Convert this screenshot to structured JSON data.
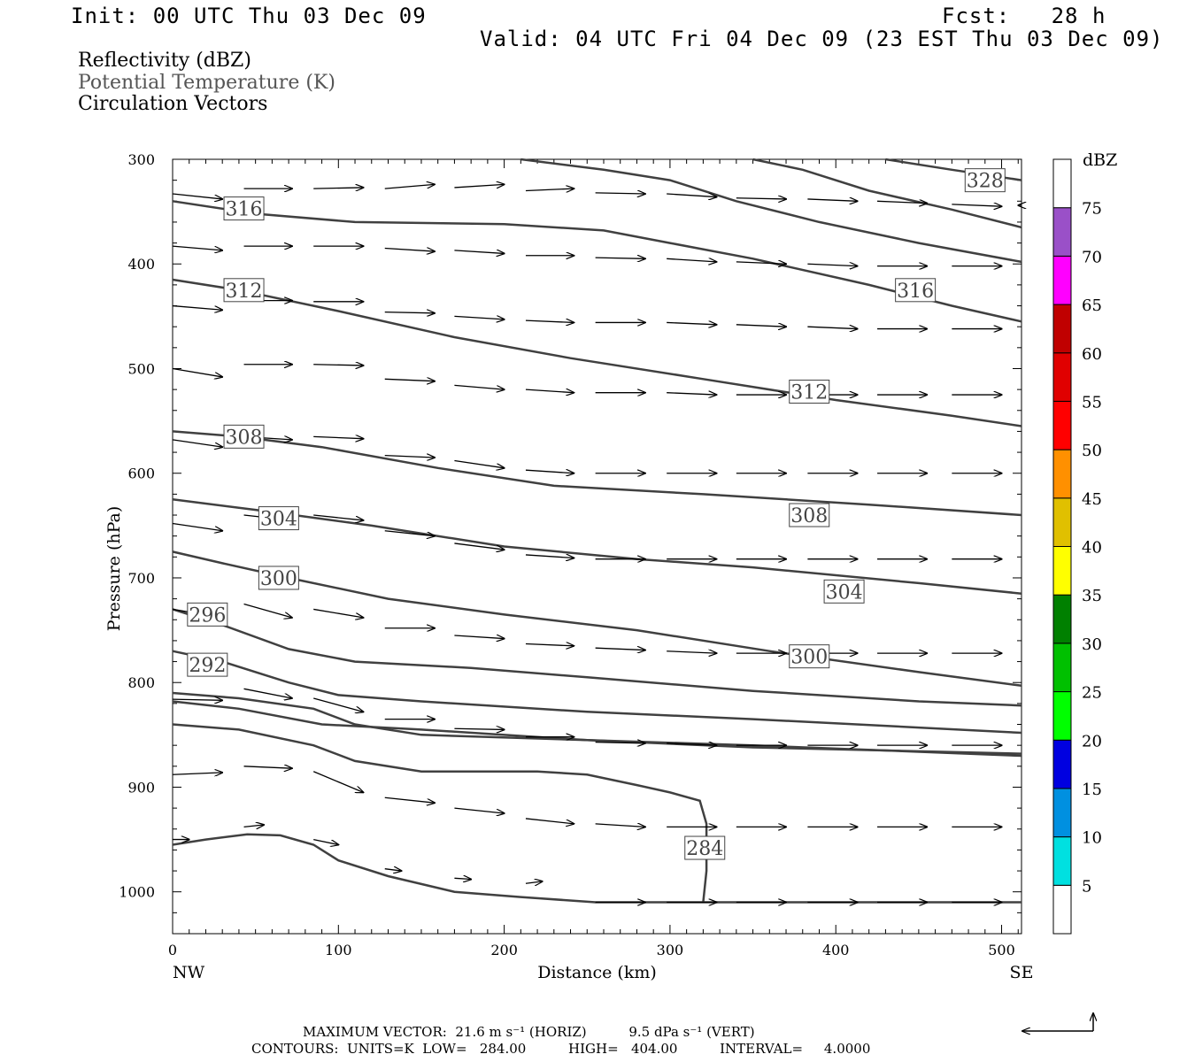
{
  "header": {
    "init": "Init: 00 UTC Thu 03 Dec 09",
    "fcst": "Fcst:   28 h",
    "valid": "Valid: 04 UTC Fri 04 Dec 09 (23 EST Thu 03 Dec 09)"
  },
  "fields": [
    "Reflectivity (dBZ)",
    "Potential Temperature (K)",
    "Circulation Vectors"
  ],
  "footer": {
    "max_vector": "MAXIMUM VECTOR:  21.6 m s⁻¹ (HORIZ)          9.5 dPa s⁻¹ (VERT)",
    "contours": "CONTOURS:  UNITS=K  LOW=   284.00          HIGH=   404.00          INTERVAL=     4.0000"
  },
  "colors": {
    "contour": "#404040",
    "scale": [
      "#00e0e0",
      "#0090e0",
      "#0000e0",
      "#00ff00",
      "#00c000",
      "#008000",
      "#ffff00",
      "#e0c000",
      "#ff9000",
      "#ff0000",
      "#e00000",
      "#c00000",
      "#ff00ff",
      "#9a50c8",
      "#ffffff"
    ]
  },
  "chart_data": {
    "type": "contour",
    "xlabel": "Distance (km)",
    "ylabel": "Pressure (hPa)",
    "xlim": [
      0,
      512
    ],
    "ylim": [
      1040,
      300
    ],
    "xticks": [
      0,
      100,
      200,
      300,
      400,
      500
    ],
    "yticks": [
      300,
      400,
      500,
      600,
      700,
      800,
      900,
      1000
    ],
    "x_end_labels": [
      "NW",
      "SE"
    ],
    "colorbar": {
      "title": "dBZ",
      "labels": [
        "5",
        "10",
        "15",
        "20",
        "25",
        "30",
        "35",
        "40",
        "45",
        "50",
        "55",
        "60",
        "65",
        "70",
        "75"
      ],
      "levels": [
        5,
        10,
        15,
        20,
        25,
        30,
        35,
        40,
        45,
        50,
        55,
        60,
        65,
        70,
        75
      ]
    },
    "contours": [
      {
        "level": 284,
        "label": "284",
        "points": [
          [
            0,
            955
          ],
          [
            20,
            950
          ],
          [
            45,
            945
          ],
          [
            65,
            946
          ],
          [
            85,
            955
          ],
          [
            100,
            970
          ],
          [
            130,
            985
          ],
          [
            170,
            1000
          ],
          [
            210,
            1005
          ],
          [
            255,
            1010
          ],
          [
            300,
            1010
          ],
          [
            512,
            1010
          ]
        ],
        "labels_at": [
          [
            321,
            958
          ]
        ]
      },
      {
        "level": 284,
        "label": "",
        "points": [
          [
            0,
            840
          ],
          [
            40,
            845
          ],
          [
            85,
            860
          ],
          [
            110,
            875
          ],
          [
            150,
            885
          ],
          [
            220,
            885
          ],
          [
            250,
            888
          ],
          [
            280,
            898
          ],
          [
            300,
            905
          ],
          [
            318,
            913
          ],
          [
            322,
            935
          ],
          [
            322,
            980
          ],
          [
            320,
            1010
          ]
        ]
      },
      {
        "level": 288,
        "label": "",
        "points": [
          [
            0,
            810
          ],
          [
            40,
            815
          ],
          [
            85,
            825
          ],
          [
            110,
            840
          ],
          [
            150,
            850
          ],
          [
            250,
            855
          ],
          [
            350,
            862
          ],
          [
            512,
            868
          ]
        ]
      },
      {
        "level": 290,
        "label": "",
        "points": [
          [
            0,
            818
          ],
          [
            40,
            825
          ],
          [
            90,
            840
          ],
          [
            150,
            845
          ],
          [
            250,
            855
          ],
          [
            350,
            860
          ],
          [
            512,
            870
          ]
        ]
      },
      {
        "level": 292,
        "label": "292",
        "points": [
          [
            0,
            770
          ],
          [
            30,
            780
          ],
          [
            70,
            800
          ],
          [
            100,
            812
          ],
          [
            150,
            818
          ],
          [
            250,
            828
          ],
          [
            350,
            835
          ],
          [
            450,
            843
          ],
          [
            512,
            848
          ]
        ],
        "labels_at": [
          [
            21,
            783
          ]
        ]
      },
      {
        "level": 296,
        "label": "296",
        "points": [
          [
            0,
            730
          ],
          [
            30,
            745
          ],
          [
            70,
            768
          ],
          [
            110,
            780
          ],
          [
            180,
            786
          ],
          [
            250,
            795
          ],
          [
            350,
            808
          ],
          [
            450,
            818
          ],
          [
            512,
            822
          ]
        ],
        "labels_at": [
          [
            21,
            735
          ]
        ]
      },
      {
        "level": 300,
        "label": "300",
        "points": [
          [
            0,
            675
          ],
          [
            30,
            686
          ],
          [
            70,
            700
          ],
          [
            130,
            720
          ],
          [
            200,
            735
          ],
          [
            280,
            750
          ],
          [
            360,
            770
          ],
          [
            450,
            790
          ],
          [
            512,
            803
          ]
        ],
        "labels_at": [
          [
            64,
            700
          ],
          [
            384,
            775
          ]
        ]
      },
      {
        "level": 304,
        "label": "304",
        "points": [
          [
            0,
            625
          ],
          [
            50,
            635
          ],
          [
            120,
            650
          ],
          [
            200,
            670
          ],
          [
            280,
            682
          ],
          [
            350,
            690
          ],
          [
            450,
            705
          ],
          [
            512,
            715
          ]
        ],
        "labels_at": [
          [
            64,
            643
          ],
          [
            405,
            713
          ]
        ]
      },
      {
        "level": 308,
        "label": "308",
        "points": [
          [
            0,
            560
          ],
          [
            40,
            565
          ],
          [
            90,
            575
          ],
          [
            160,
            595
          ],
          [
            230,
            612
          ],
          [
            320,
            620
          ],
          [
            420,
            630
          ],
          [
            512,
            640
          ]
        ],
        "labels_at": [
          [
            43,
            565
          ],
          [
            384,
            640
          ]
        ]
      },
      {
        "level": 312,
        "label": "312",
        "points": [
          [
            0,
            415
          ],
          [
            40,
            425
          ],
          [
            100,
            445
          ],
          [
            170,
            470
          ],
          [
            240,
            490
          ],
          [
            320,
            510
          ],
          [
            400,
            530
          ],
          [
            470,
            545
          ],
          [
            512,
            555
          ]
        ],
        "labels_at": [
          [
            43,
            425
          ],
          [
            384,
            522
          ]
        ]
      },
      {
        "level": 316,
        "label": "316",
        "points": [
          [
            0,
            340
          ],
          [
            50,
            352
          ],
          [
            110,
            360
          ],
          [
            200,
            362
          ],
          [
            260,
            368
          ],
          [
            300,
            380
          ],
          [
            350,
            395
          ],
          [
            420,
            420
          ],
          [
            470,
            440
          ],
          [
            512,
            455
          ]
        ],
        "labels_at": [
          [
            43,
            347
          ],
          [
            448,
            425
          ]
        ]
      },
      {
        "level": 320,
        "label": "",
        "points": [
          [
            210,
            300
          ],
          [
            260,
            310
          ],
          [
            300,
            320
          ],
          [
            340,
            340
          ],
          [
            390,
            360
          ],
          [
            450,
            380
          ],
          [
            512,
            398
          ]
        ]
      },
      {
        "level": 324,
        "label": "",
        "points": [
          [
            350,
            300
          ],
          [
            380,
            310
          ],
          [
            420,
            330
          ],
          [
            470,
            348
          ],
          [
            512,
            365
          ]
        ]
      },
      {
        "level": 328,
        "label": "328",
        "points": [
          [
            430,
            300
          ],
          [
            470,
            310
          ],
          [
            512,
            320
          ]
        ],
        "labels_at": [
          [
            490,
            320
          ]
        ]
      }
    ],
    "vectors": [
      [
        0,
        333,
        30,
        338
      ],
      [
        43,
        328,
        72,
        328
      ],
      [
        85,
        328,
        115,
        327
      ],
      [
        128,
        328,
        158,
        324
      ],
      [
        170,
        327,
        200,
        324
      ],
      [
        213,
        330,
        242,
        328
      ],
      [
        255,
        332,
        285,
        333
      ],
      [
        298,
        333,
        328,
        336
      ],
      [
        340,
        337,
        370,
        338
      ],
      [
        383,
        338,
        413,
        340
      ],
      [
        425,
        340,
        455,
        342
      ],
      [
        470,
        343,
        500,
        345
      ],
      [
        512,
        344,
        510,
        344
      ],
      [
        0,
        383,
        30,
        387
      ],
      [
        43,
        383,
        72,
        383
      ],
      [
        85,
        383,
        115,
        383
      ],
      [
        128,
        385,
        158,
        388
      ],
      [
        170,
        387,
        200,
        390
      ],
      [
        213,
        392,
        242,
        392
      ],
      [
        255,
        394,
        285,
        395
      ],
      [
        298,
        395,
        328,
        398
      ],
      [
        340,
        398,
        370,
        400
      ],
      [
        383,
        400,
        413,
        402
      ],
      [
        425,
        402,
        455,
        402
      ],
      [
        470,
        402,
        500,
        402
      ],
      [
        0,
        440,
        30,
        444
      ],
      [
        43,
        435,
        72,
        435
      ],
      [
        85,
        436,
        115,
        436
      ],
      [
        128,
        446,
        158,
        447
      ],
      [
        170,
        450,
        200,
        453
      ],
      [
        213,
        454,
        242,
        456
      ],
      [
        255,
        456,
        285,
        456
      ],
      [
        298,
        456,
        328,
        458
      ],
      [
        340,
        458,
        370,
        460
      ],
      [
        383,
        460,
        413,
        462
      ],
      [
        425,
        462,
        455,
        462
      ],
      [
        470,
        462,
        500,
        462
      ],
      [
        0,
        500,
        30,
        508
      ],
      [
        43,
        496,
        72,
        496
      ],
      [
        85,
        496,
        115,
        497
      ],
      [
        128,
        510,
        158,
        512
      ],
      [
        170,
        516,
        200,
        520
      ],
      [
        213,
        520,
        242,
        523
      ],
      [
        255,
        523,
        285,
        523
      ],
      [
        298,
        523,
        328,
        525
      ],
      [
        340,
        525,
        370,
        525
      ],
      [
        383,
        525,
        413,
        525
      ],
      [
        425,
        525,
        455,
        525
      ],
      [
        470,
        525,
        500,
        525
      ],
      [
        0,
        568,
        30,
        575
      ],
      [
        43,
        565,
        72,
        568
      ],
      [
        85,
        565,
        115,
        567
      ],
      [
        128,
        583,
        158,
        585
      ],
      [
        170,
        588,
        200,
        595
      ],
      [
        213,
        597,
        242,
        600
      ],
      [
        255,
        600,
        285,
        600
      ],
      [
        298,
        600,
        328,
        600
      ],
      [
        340,
        600,
        370,
        600
      ],
      [
        383,
        600,
        413,
        600
      ],
      [
        425,
        600,
        455,
        600
      ],
      [
        470,
        600,
        500,
        600
      ],
      [
        0,
        648,
        30,
        655
      ],
      [
        43,
        640,
        72,
        645
      ],
      [
        85,
        640,
        115,
        645
      ],
      [
        128,
        655,
        158,
        660
      ],
      [
        170,
        667,
        200,
        673
      ],
      [
        213,
        678,
        242,
        681
      ],
      [
        255,
        682,
        285,
        682
      ],
      [
        298,
        682,
        328,
        682
      ],
      [
        340,
        682,
        370,
        682
      ],
      [
        383,
        682,
        413,
        682
      ],
      [
        425,
        682,
        455,
        682
      ],
      [
        470,
        682,
        500,
        682
      ],
      [
        0,
        730,
        30,
        738
      ],
      [
        43,
        725,
        72,
        738
      ],
      [
        85,
        730,
        115,
        738
      ],
      [
        128,
        748,
        158,
        748
      ],
      [
        170,
        755,
        200,
        758
      ],
      [
        213,
        763,
        242,
        765
      ],
      [
        255,
        767,
        285,
        769
      ],
      [
        298,
        770,
        328,
        772
      ],
      [
        340,
        772,
        370,
        772
      ],
      [
        383,
        772,
        413,
        772
      ],
      [
        425,
        772,
        455,
        772
      ],
      [
        470,
        772,
        500,
        772
      ],
      [
        0,
        816,
        30,
        817
      ],
      [
        43,
        806,
        72,
        815
      ],
      [
        85,
        815,
        115,
        828
      ],
      [
        128,
        835,
        158,
        835
      ],
      [
        170,
        844,
        200,
        845
      ],
      [
        213,
        852,
        242,
        852
      ],
      [
        255,
        857,
        285,
        858
      ],
      [
        298,
        858,
        328,
        860
      ],
      [
        340,
        860,
        370,
        860
      ],
      [
        383,
        860,
        413,
        860
      ],
      [
        425,
        860,
        455,
        860
      ],
      [
        470,
        860,
        500,
        860
      ],
      [
        0,
        888,
        30,
        886
      ],
      [
        43,
        880,
        72,
        882
      ],
      [
        85,
        885,
        115,
        905
      ],
      [
        128,
        910,
        158,
        915
      ],
      [
        170,
        920,
        200,
        925
      ],
      [
        213,
        930,
        242,
        935
      ],
      [
        255,
        935,
        285,
        938
      ],
      [
        298,
        938,
        328,
        938
      ],
      [
        340,
        938,
        370,
        938
      ],
      [
        383,
        938,
        413,
        938
      ],
      [
        425,
        938,
        455,
        938
      ],
      [
        470,
        938,
        500,
        938
      ],
      [
        0,
        950,
        10,
        950
      ],
      [
        43,
        938,
        55,
        936
      ],
      [
        85,
        950,
        100,
        955
      ],
      [
        128,
        978,
        138,
        980
      ],
      [
        170,
        987,
        180,
        988
      ],
      [
        213,
        992,
        223,
        990
      ],
      [
        255,
        1010,
        285,
        1010
      ],
      [
        298,
        1010,
        328,
        1010
      ],
      [
        340,
        1010,
        370,
        1010
      ],
      [
        383,
        1010,
        413,
        1010
      ],
      [
        425,
        1010,
        455,
        1010
      ],
      [
        470,
        1010,
        500,
        1010
      ]
    ]
  }
}
